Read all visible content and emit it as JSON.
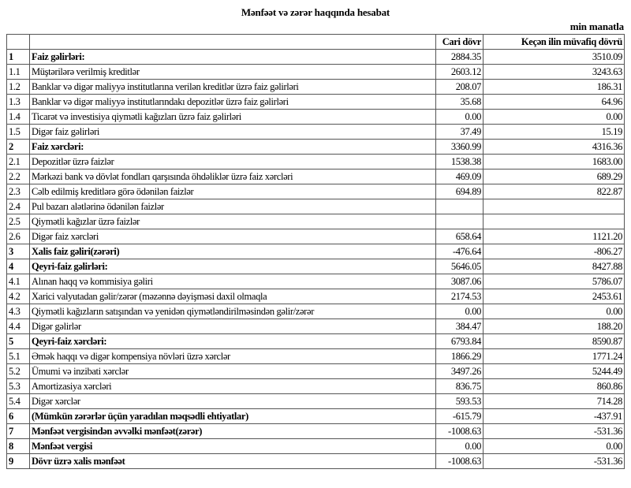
{
  "title": "Mənfəət və zərər haqqında hesabat",
  "unit": "min manatla",
  "columns": {
    "num": "",
    "label": "",
    "current": "Cari dövr",
    "previous": "Keçən ilin müvafiq dövrü"
  },
  "rows": [
    {
      "num": "1",
      "label": "Faiz gəlirləri:",
      "current": "2884.35",
      "previous": "3510.09",
      "bold": true
    },
    {
      "num": "1.1",
      "label": "Müştərilərə verilmiş kreditlər",
      "current": "2603.12",
      "previous": "3243.63",
      "bold": false
    },
    {
      "num": "1.2",
      "label": "Banklar və digər maliyyə institutlarına verilən kreditlər üzrə faiz gəlirləri",
      "current": "208.07",
      "previous": "186.31",
      "bold": false
    },
    {
      "num": "1.3",
      "label": "Banklar və digər maliyyə institutlarındakı depozitlər üzrə faiz gəlirləri",
      "current": "35.68",
      "previous": "64.96",
      "bold": false
    },
    {
      "num": "1.4",
      "label": "Ticarət və investisiya qiymətli kağızları üzrə faiz gəlirləri",
      "current": "0.00",
      "previous": "0.00",
      "bold": false
    },
    {
      "num": "1.5",
      "label": "Digər faiz gəlirləri",
      "current": "37.49",
      "previous": "15.19",
      "bold": false
    },
    {
      "num": "2",
      "label": "Faiz xərcləri:",
      "current": "3360.99",
      "previous": "4316.36",
      "bold": true
    },
    {
      "num": "2.1",
      "label": "Depozitlər üzrə faizlər",
      "current": "1538.38",
      "previous": "1683.00",
      "bold": false
    },
    {
      "num": "2.2",
      "label": "Mərkəzi bank və dövlət fondları qarşısında öhdəliklər üzrə faiz xərcləri",
      "current": "469.09",
      "previous": "689.29",
      "bold": false
    },
    {
      "num": "2.3",
      "label": "Cəlb edilmiş kreditlərə görə ödənilən faizlər",
      "current": "694.89",
      "previous": "822.87",
      "bold": false
    },
    {
      "num": "2.4",
      "label": "Pul bazarı alətlərinə ödənilən faizlər",
      "current": "",
      "previous": "",
      "bold": false
    },
    {
      "num": "2.5",
      "label": "Qiymətli kağızlar üzrə faizlər",
      "current": "",
      "previous": "",
      "bold": false
    },
    {
      "num": "2.6",
      "label": "Digər faiz xərcləri",
      "current": "658.64",
      "previous": "1121.20",
      "bold": false
    },
    {
      "num": "3",
      "label": "Xalis faiz gəliri(zərəri)",
      "current": "-476.64",
      "previous": "-806.27",
      "bold": true
    },
    {
      "num": "4",
      "label": "Qeyri-faiz gəlirləri:",
      "current": "5646.05",
      "previous": "8427.88",
      "bold": true
    },
    {
      "num": "4.1",
      "label": "Alınan haqq və kommisiya gəliri",
      "current": "3087.06",
      "previous": "5786.07",
      "bold": false
    },
    {
      "num": "4.2",
      "label": "Xarici valyutadan gəlir/zərər (məzənnə dəyişməsi daxil olmaqla",
      "current": "2174.53",
      "previous": "2453.61",
      "bold": false
    },
    {
      "num": "4.3",
      "label": "Qiymətli kağızların satışından və yenidən qiymətləndirilməsindən gəlir/zərər",
      "current": "0.00",
      "previous": "0.00",
      "bold": false
    },
    {
      "num": "4.4",
      "label": "Digər gəlirlər",
      "current": "384.47",
      "previous": "188.20",
      "bold": false
    },
    {
      "num": "5",
      "label": "Qeyri-faiz xərcləri:",
      "current": "6793.84",
      "previous": "8590.87",
      "bold": true
    },
    {
      "num": "5.1",
      "label": "Əmək haqqı və digər kompensiya növləri üzrə xərclər",
      "current": "1866.29",
      "previous": "1771.24",
      "bold": false
    },
    {
      "num": "5.2",
      "label": "Ümumi və inzibati xərclər",
      "current": "3497.26",
      "previous": "5244.49",
      "bold": false
    },
    {
      "num": "5.3",
      "label": "Amortizasiya xərcləri",
      "current": "836.75",
      "previous": "860.86",
      "bold": false
    },
    {
      "num": "5.4",
      "label": "Digər xərclər",
      "current": "593.53",
      "previous": "714.28",
      "bold": false
    },
    {
      "num": "6",
      "label": "(Mümkün zərərlər üçün yaradılan məqsədli ehtiyatlar)",
      "current": "-615.79",
      "previous": "-437.91",
      "bold": true
    },
    {
      "num": "7",
      "label": "Mənfəət vergisindən əvvəlki mənfəət(zərər)",
      "current": "-1008.63",
      "previous": "-531.36",
      "bold": true
    },
    {
      "num": "8",
      "label": "Mənfəət vergisi",
      "current": "0.00",
      "previous": "0.00",
      "bold": true
    },
    {
      "num": "9",
      "label": "Dövr üzrə xalis mənfəət",
      "current": "-1008.63",
      "previous": "-531.36",
      "bold": true
    }
  ]
}
